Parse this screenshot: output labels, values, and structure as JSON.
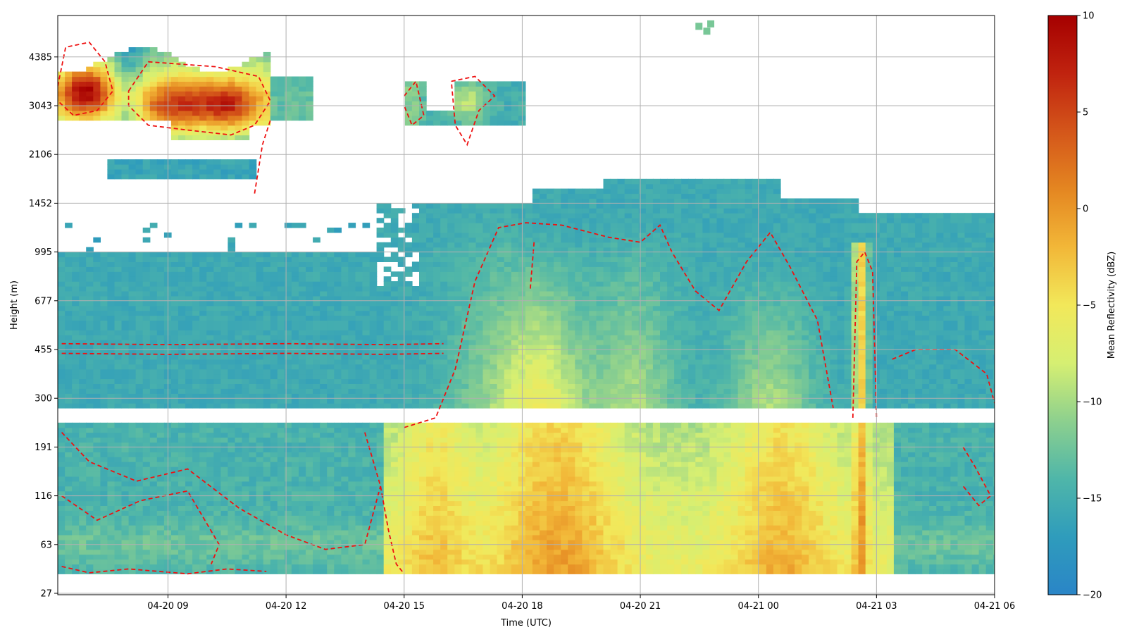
{
  "chart_data": {
    "type": "heatmap",
    "title": "",
    "xlabel": "Time (UTC)",
    "ylabel": "Height (m)",
    "x_ticks": [
      {
        "label": "04-20 09",
        "hours": 9
      },
      {
        "label": "04-20 12",
        "hours": 12
      },
      {
        "label": "04-20 15",
        "hours": 15
      },
      {
        "label": "04-20 18",
        "hours": 18
      },
      {
        "label": "04-20 21",
        "hours": 21
      },
      {
        "label": "04-21 00",
        "hours": 24
      },
      {
        "label": "04-21 03",
        "hours": 27
      },
      {
        "label": "04-21 06",
        "hours": 30
      }
    ],
    "x_range_hours": [
      6.2,
      30
    ],
    "y_ticks": [
      "27",
      "63",
      "116",
      "191",
      "300",
      "455",
      "677",
      "995",
      "1452",
      "2106",
      "3043",
      "4385"
    ],
    "y_axis_layout": "categorical (quasi-logarithmic) height bins",
    "grid": true,
    "colorbar": {
      "label": "Mean Reflectivity (dBZ)",
      "range": [
        -20,
        10
      ],
      "ticks": [
        10,
        5,
        0,
        -5,
        -10,
        -15,
        -20
      ],
      "colormap": [
        "#2a85c7",
        "#2f9cbc",
        "#4fb6a9",
        "#8dd08e",
        "#d6ef72",
        "#f2e85a",
        "#f2b738",
        "#e48621",
        "#d4561a",
        "#c0230f",
        "#a50000"
      ]
    },
    "contour": {
      "color": "#ee1111",
      "style": "dashed",
      "level_dBZ": -10
    },
    "features": [
      {
        "name": "upper cloud cells",
        "time_hours": [
          6.3,
          9.4,
          11.2
        ],
        "height_m": [
          2400,
          5000
        ],
        "peak_dBZ": [
          8,
          4,
          4
        ]
      },
      {
        "name": "mid-level cloud",
        "time_hours": [
          15,
          18
        ],
        "height_m": [
          2200,
          3800
        ],
        "peak_dBZ": -8
      },
      {
        "name": "boundary layer echoes",
        "time_hours": [
          6.2,
          30
        ],
        "height_m": [
          27,
          1800
        ],
        "typical_dBZ": -15
      },
      {
        "name": "enhanced low-level echoes",
        "time_hours": [
          14.5,
          27.5
        ],
        "height_m": [
          27,
          300
        ],
        "peak_dBZ": 4
      },
      {
        "name": "narrow vertical column",
        "time_hours": 26.7,
        "height_m": [
          27,
          900
        ],
        "peak_dBZ": 3
      }
    ],
    "missing_height_bins_m": [
      27,
      250
    ]
  }
}
